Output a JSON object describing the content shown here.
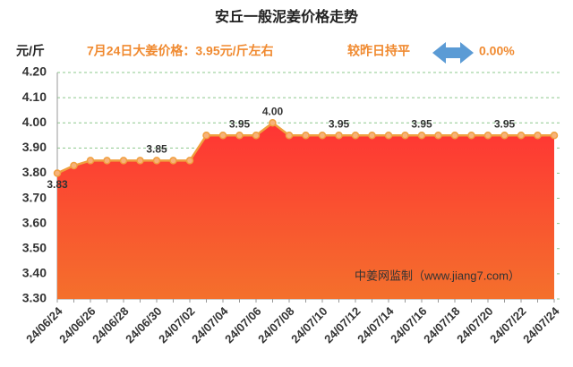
{
  "chart_data": {
    "type": "area",
    "title": "安丘一般泥姜价格走势",
    "y_unit": "元/斤",
    "headline": "7月24日大姜价格：3.95元/斤左右",
    "change_text": "较昨日持平",
    "change_value": "0.00%",
    "watermark": "中姜网监制（www.jiang7.com）",
    "categories": [
      "24/06/24",
      null,
      "24/06/26",
      null,
      "24/06/28",
      null,
      "24/06/30",
      null,
      "24/07/02",
      null,
      "24/07/04",
      null,
      "24/07/06",
      null,
      "24/07/08",
      null,
      "24/07/10",
      null,
      "24/07/12",
      null,
      "24/07/14",
      null,
      "24/07/16",
      null,
      "24/07/18",
      null,
      "24/07/20",
      null,
      "24/07/22",
      null,
      "24/07/24"
    ],
    "values": [
      3.8,
      3.83,
      3.85,
      3.85,
      3.85,
      3.85,
      3.85,
      3.85,
      3.85,
      3.95,
      3.95,
      3.95,
      3.95,
      4.0,
      3.95,
      3.95,
      3.95,
      3.95,
      3.95,
      3.95,
      3.95,
      3.95,
      3.95,
      3.95,
      3.95,
      3.95,
      3.95,
      3.95,
      3.95,
      3.95,
      3.95
    ],
    "value_labels": [
      null,
      "3.83",
      null,
      null,
      null,
      null,
      "3.85",
      null,
      null,
      null,
      null,
      "3.95",
      null,
      "4.00",
      null,
      null,
      null,
      "3.95",
      null,
      null,
      null,
      null,
      "3.95",
      null,
      null,
      null,
      null,
      "3.95",
      null,
      null,
      null
    ],
    "color": "#f0a040",
    "ylim": [
      3.3,
      4.2
    ],
    "yticks": [
      {
        "value": 3.3,
        "label": "3.30"
      },
      {
        "value": 3.4,
        "label": "3.40"
      },
      {
        "value": 3.5,
        "label": "3.50"
      },
      {
        "value": 3.6,
        "label": "3.60"
      },
      {
        "value": 3.7,
        "label": "3.70"
      },
      {
        "value": 3.8,
        "label": "3.80"
      },
      {
        "value": 3.9,
        "label": "3.90"
      },
      {
        "value": 4.0,
        "label": "4.00"
      },
      {
        "value": 4.1,
        "label": "4.10"
      },
      {
        "value": 4.2,
        "label": "4.20"
      }
    ],
    "grid": true
  }
}
